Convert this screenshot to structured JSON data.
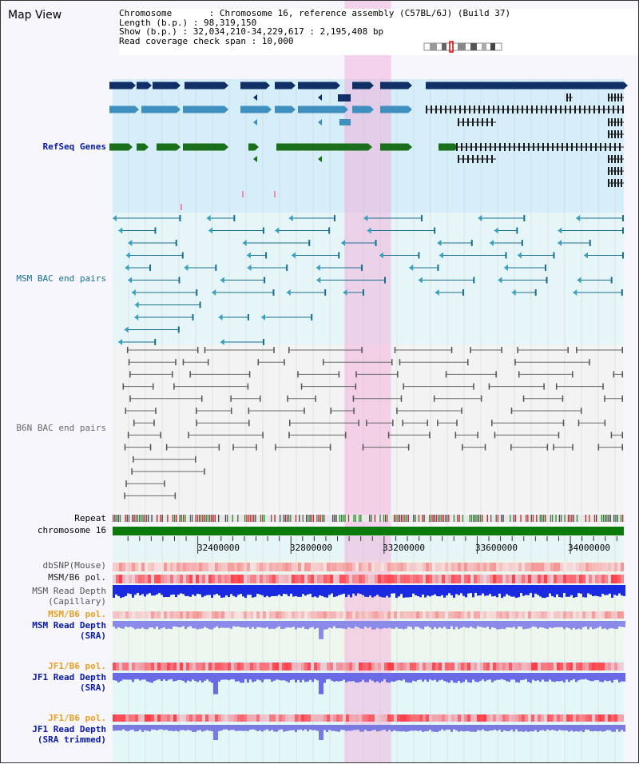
{
  "view": {
    "title": "Map View"
  },
  "header": {
    "lines": [
      "Chromosome       : Chromosome 16, reference assembly (C57BL/6J) (Build 37)",
      "Length (b.p.) : 98,319,150",
      "Show (b.p.) : 32,034,210-34,229,617 : 2,195,408 bp",
      "Read coverage check span : 10,000"
    ]
  },
  "region": {
    "start": 32034210,
    "end": 34229617
  },
  "highlight": {
    "start": 33030000,
    "end": 33230000
  },
  "axis": {
    "ticks": [
      32400000,
      32800000,
      33200000,
      33600000,
      34000000
    ]
  },
  "tracks": [
    {
      "label": "RefSeq Genes",
      "color": "#0a1aa8"
    },
    {
      "label": "MSM BAC end pairs",
      "color": "#1a6f8e"
    },
    {
      "label": "B6N BAC end pairs",
      "color": "#6a6a6a"
    },
    {
      "label": "Repeat",
      "color": "#000000"
    },
    {
      "label": "chromosome 16",
      "color": "#000000"
    },
    {
      "label": "dbSNP(Mouse)",
      "color": "#555555"
    },
    {
      "label": "MSM/B6 pol.",
      "color": "#222222"
    },
    {
      "label": "MSM Read Depth\n(Capillary)",
      "color": "#555555"
    },
    {
      "label": "MSM/B6 pol.",
      "color": "#e8a020"
    },
    {
      "label": "MSM Read Depth\n(SRA)",
      "color": "#0a1aa8"
    },
    {
      "label": "JF1/B6 pol.",
      "color": "#e8a020"
    },
    {
      "label": "JF1 Read Depth\n(SRA)",
      "color": "#0a1aa8"
    },
    {
      "label": "JF1/B6 pol.",
      "color": "#e8a020"
    },
    {
      "label": "JF1 Read Depth\n(SRA trimmed)",
      "color": "#0a1aa8"
    }
  ]
}
